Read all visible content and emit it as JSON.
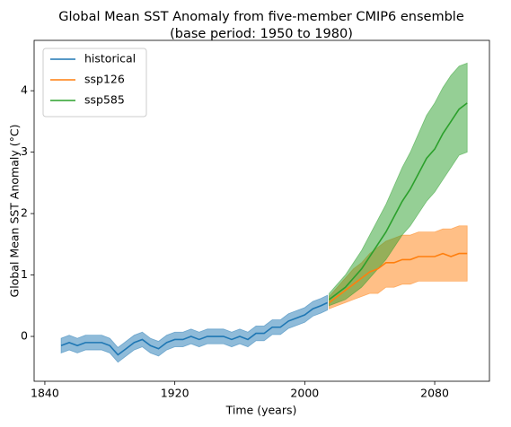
{
  "chart_data": {
    "type": "line",
    "title": "Global Mean SST Anomaly from five-member CMIP6 ensemble",
    "subtitle": "(base period: 1950 to 1980)",
    "x_label": "Time (years)",
    "y_label": "Global Mean SST Anomaly (°C)",
    "xlim": [
      1833.4,
      2113.7
    ],
    "ylim": [
      -0.73,
      4.82
    ],
    "xticks": [
      1840,
      1920,
      2000,
      2080
    ],
    "yticks": [
      0,
      1,
      2,
      3,
      4
    ],
    "legend": "upper left",
    "series": [
      {
        "name": "historical",
        "color": "#1f77b4",
        "x": [
          1850,
          1855,
          1860,
          1865,
          1870,
          1875,
          1880,
          1885,
          1890,
          1895,
          1900,
          1905,
          1910,
          1915,
          1920,
          1925,
          1930,
          1935,
          1940,
          1945,
          1950,
          1955,
          1960,
          1965,
          1970,
          1975,
          1980,
          1985,
          1990,
          1995,
          2000,
          2005,
          2010,
          2014
        ],
        "values": [
          -0.15,
          -0.1,
          -0.15,
          -0.1,
          -0.1,
          -0.1,
          -0.15,
          -0.3,
          -0.2,
          -0.1,
          -0.05,
          -0.15,
          -0.2,
          -0.1,
          -0.05,
          -0.05,
          0.0,
          -0.05,
          0.0,
          0.0,
          0.0,
          -0.05,
          0.0,
          -0.05,
          0.05,
          0.05,
          0.15,
          0.15,
          0.25,
          0.3,
          0.35,
          0.45,
          0.5,
          0.55
        ],
        "lower": [
          -0.27,
          -0.22,
          -0.27,
          -0.22,
          -0.22,
          -0.22,
          -0.27,
          -0.42,
          -0.32,
          -0.22,
          -0.17,
          -0.27,
          -0.32,
          -0.22,
          -0.17,
          -0.17,
          -0.12,
          -0.17,
          -0.12,
          -0.12,
          -0.12,
          -0.17,
          -0.12,
          -0.17,
          -0.07,
          -0.07,
          0.03,
          0.03,
          0.13,
          0.18,
          0.23,
          0.33,
          0.38,
          0.43
        ],
        "upper": [
          -0.03,
          0.02,
          -0.03,
          0.02,
          0.02,
          0.02,
          -0.03,
          -0.18,
          -0.08,
          0.02,
          0.07,
          -0.03,
          -0.08,
          0.02,
          0.07,
          0.07,
          0.12,
          0.07,
          0.12,
          0.12,
          0.12,
          0.07,
          0.12,
          0.07,
          0.17,
          0.17,
          0.27,
          0.27,
          0.37,
          0.42,
          0.47,
          0.57,
          0.62,
          0.67
        ]
      },
      {
        "name": "ssp126",
        "color": "#ff7f0e",
        "x": [
          2015,
          2020,
          2025,
          2030,
          2035,
          2040,
          2045,
          2050,
          2055,
          2060,
          2065,
          2070,
          2075,
          2080,
          2085,
          2090,
          2095,
          2100
        ],
        "values": [
          0.55,
          0.65,
          0.75,
          0.85,
          0.95,
          1.05,
          1.1,
          1.2,
          1.2,
          1.25,
          1.25,
          1.3,
          1.3,
          1.3,
          1.35,
          1.3,
          1.35,
          1.35
        ],
        "lower": [
          0.45,
          0.5,
          0.55,
          0.6,
          0.65,
          0.7,
          0.7,
          0.8,
          0.8,
          0.85,
          0.85,
          0.9,
          0.9,
          0.9,
          0.9,
          0.9,
          0.9,
          0.9
        ],
        "upper": [
          0.65,
          0.8,
          0.95,
          1.1,
          1.2,
          1.35,
          1.45,
          1.55,
          1.6,
          1.65,
          1.65,
          1.7,
          1.7,
          1.7,
          1.75,
          1.75,
          1.8,
          1.8
        ]
      },
      {
        "name": "ssp585",
        "color": "#2ca02c",
        "x": [
          2015,
          2020,
          2025,
          2030,
          2035,
          2040,
          2045,
          2050,
          2055,
          2060,
          2065,
          2070,
          2075,
          2080,
          2085,
          2090,
          2095,
          2100
        ],
        "values": [
          0.6,
          0.7,
          0.8,
          0.95,
          1.1,
          1.3,
          1.5,
          1.7,
          1.95,
          2.2,
          2.4,
          2.65,
          2.9,
          3.05,
          3.3,
          3.5,
          3.7,
          3.8
        ],
        "lower": [
          0.5,
          0.55,
          0.6,
          0.7,
          0.8,
          0.95,
          1.1,
          1.25,
          1.45,
          1.65,
          1.8,
          2.0,
          2.2,
          2.35,
          2.55,
          2.75,
          2.95,
          3.0
        ],
        "upper": [
          0.7,
          0.85,
          1.0,
          1.2,
          1.4,
          1.65,
          1.9,
          2.15,
          2.45,
          2.75,
          3.0,
          3.3,
          3.6,
          3.8,
          4.05,
          4.25,
          4.4,
          4.45
        ]
      }
    ]
  }
}
